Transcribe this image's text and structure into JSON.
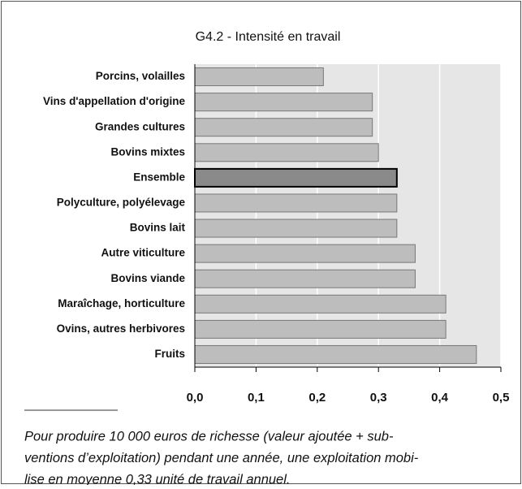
{
  "chart_data": {
    "type": "bar",
    "orientation": "horizontal",
    "title": "G4.2 - Intensité en travail",
    "categories": [
      "Porcins, volailles",
      "Vins d'appellation d'origine",
      "Grandes cultures",
      "Bovins mixtes",
      "Ensemble",
      "Polyculture, polyélevage",
      "Bovins lait",
      "Autre viticulture",
      "Bovins viande",
      "Maraîchage, horticulture",
      "Ovins, autres herbivores",
      "Fruits"
    ],
    "values": [
      0.21,
      0.29,
      0.29,
      0.3,
      0.33,
      0.33,
      0.33,
      0.36,
      0.36,
      0.41,
      0.41,
      0.46
    ],
    "colors": [
      "#bdbdbd",
      "#bdbdbd",
      "#bdbdbd",
      "#bdbdbd",
      "#8a8a8a",
      "#bdbdbd",
      "#bdbdbd",
      "#bdbdbd",
      "#bdbdbd",
      "#bdbdbd",
      "#bdbdbd",
      "#bdbdbd"
    ],
    "xlim": [
      0,
      0.5
    ],
    "xticks": [
      {
        "value": 0,
        "label": "0,0"
      },
      {
        "value": 0.1,
        "label": "0,1"
      },
      {
        "value": 0.2,
        "label": "0,2"
      },
      {
        "value": 0.3,
        "label": "0,3"
      },
      {
        "value": 0.4,
        "label": "0,4"
      },
      {
        "value": 0.5,
        "label": "0,5"
      }
    ],
    "grid": true,
    "note": [
      "Pour produire 10 000 euros de richesse (valeur ajoutée + sub-",
      "ventions d’exploitation) pendant une année, une exploitation mobi-",
      "lise en moyenne 0,33 unité de travail annuel."
    ]
  }
}
